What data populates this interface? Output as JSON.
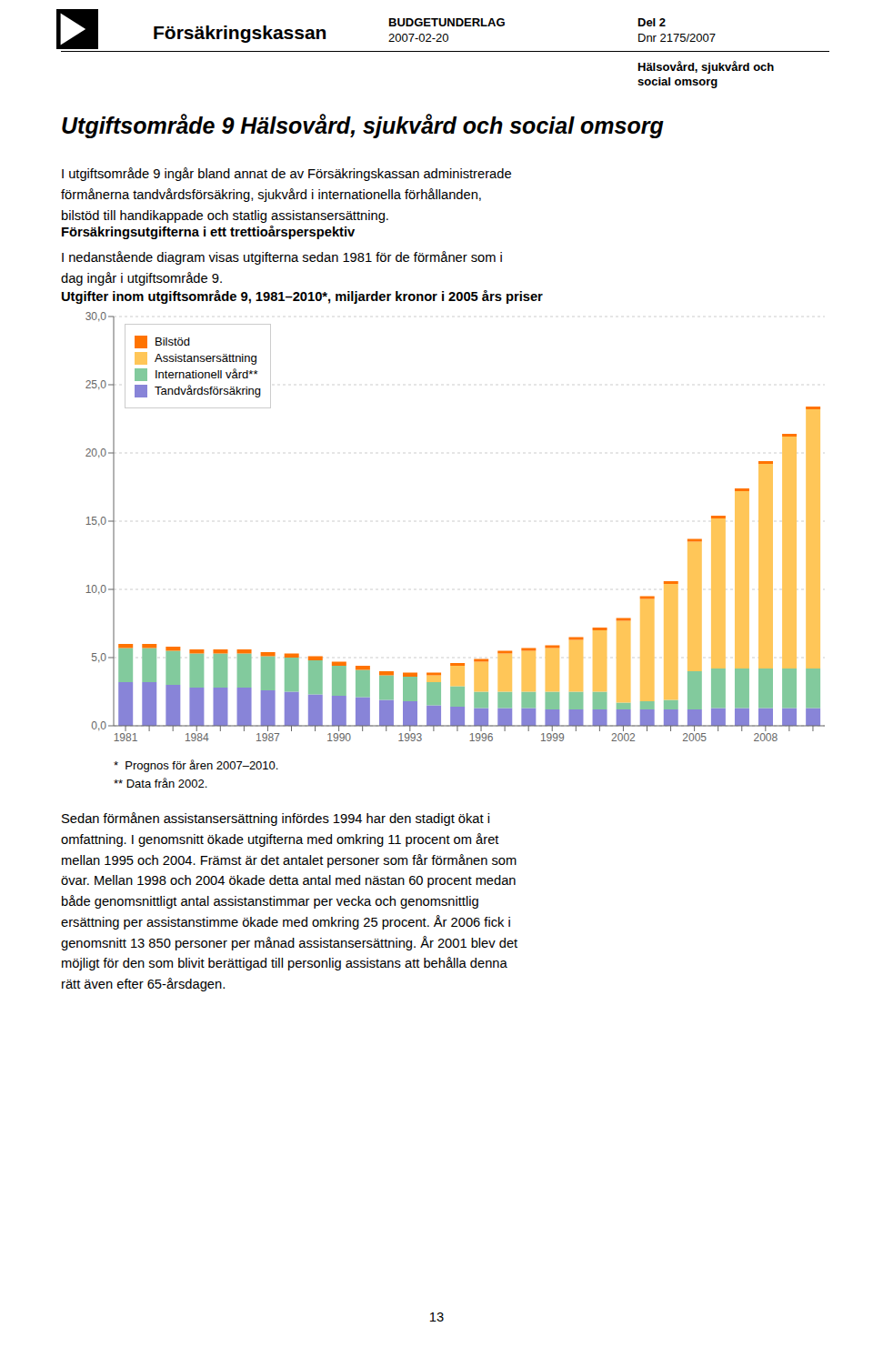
{
  "chart_data": {
    "type": "bar",
    "title": "Utgifter inom utgiftsområde 9, 1981–2010*, miljarder kronor i 2005 års priser",
    "stacked": true,
    "grid": true,
    "legend": "upper left",
    "categories": [
      1981,
      null,
      null,
      1984,
      null,
      null,
      1987,
      null,
      null,
      1990,
      null,
      null,
      1993,
      null,
      null,
      1996,
      null,
      null,
      1999,
      null,
      null,
      2002,
      null,
      null,
      2005,
      null,
      null,
      2008,
      null,
      null
    ],
    "series": [
      {
        "name": "Tandvårdsförsäkring",
        "color": "#8884d8",
        "values": [
          3.2,
          3.2,
          3.0,
          2.8,
          2.8,
          2.8,
          2.6,
          2.5,
          2.3,
          2.2,
          2.1,
          1.9,
          1.8,
          1.5,
          1.4,
          1.3,
          1.3,
          1.3,
          1.2,
          1.2,
          1.2,
          1.2,
          1.2,
          1.2,
          1.2,
          1.3,
          1.3,
          1.3,
          1.3,
          1.3
        ]
      },
      {
        "name": "Internationell vård**",
        "color": "#82ca9d",
        "values": [
          2.5,
          2.5,
          2.5,
          2.5,
          2.5,
          2.5,
          2.5,
          2.5,
          2.5,
          2.2,
          2.0,
          1.8,
          1.8,
          1.7,
          1.5,
          1.2,
          1.2,
          1.2,
          1.3,
          1.3,
          1.3,
          0.5,
          0.6,
          0.7,
          2.8,
          2.9,
          2.9,
          2.9,
          2.9,
          2.9
        ]
      },
      {
        "name": "Assistansersättning",
        "color": "#ffc658",
        "values": [
          0.0,
          0.0,
          0.0,
          0.0,
          0.0,
          0.0,
          0.0,
          0.0,
          0.0,
          0.0,
          0.0,
          0.0,
          0.0,
          0.5,
          1.5,
          2.2,
          2.8,
          3.0,
          3.2,
          3.8,
          4.5,
          6.0,
          7.5,
          8.5,
          9.5,
          11.0,
          13.0,
          15.0,
          17.0,
          19.0
        ]
      },
      {
        "name": "Bilstöd",
        "color": "#ff7300",
        "values": [
          0.3,
          0.3,
          0.3,
          0.3,
          0.3,
          0.3,
          0.3,
          0.3,
          0.3,
          0.3,
          0.3,
          0.3,
          0.3,
          0.2,
          0.2,
          0.2,
          0.2,
          0.2,
          0.2,
          0.2,
          0.2,
          0.2,
          0.2,
          0.2,
          0.2,
          0.2,
          0.2,
          0.2,
          0.2,
          0.2
        ]
      }
    ],
    "ylim": [
      0,
      30
    ],
    "yticks": [
      {
        "value": 0,
        "label": "0,0"
      },
      {
        "value": 5,
        "label": "5,0"
      },
      {
        "value": 10,
        "label": "10,0"
      },
      {
        "value": 15,
        "label": "15,0"
      },
      {
        "value": 20,
        "label": "20,0"
      },
      {
        "value": 25,
        "label": "25,0"
      },
      {
        "value": 30,
        "label": "30,0"
      }
    ],
    "annotations": [
      "Försäkringskassan",
      "BUDGETUNDERLAG",
      "2007-02-20",
      "Del 2",
      "Dnr 2175/2007",
      "Hälsovård, sjukvård och\nsocial omsorg",
      "Utgiftsområde 9 Hälsovård, sjukvård och social omsorg",
      "I utgiftsområde 9 ingår bland annat de av Försäkringskassan administrerade\nförmånerna tandvårdsförsäkring, sjukvård i internationella förhållanden,\nbilstöd till handikappade och statlig assistansersättning.",
      "Försäkringsutgifterna i ett trettioårsperspektiv",
      "I nedanstående diagram visas utgifterna sedan 1981 för de förmåner som i\ndag ingår i utgiftsområde 9.",
      "*  Prognos för åren 2007–2010.",
      "** Data från 2002.",
      "Sedan förmånen assistansersättning infördes 1994 har den stadigt ökat i\nomfattning. I genomsnitt ökade utgifterna med omkring 11 procent om året\nmellan 1995 och 2004. Främst är det antalet personer som får förmånen som\növar. Mellan 1998 och 2004 ökade detta antal med nästan 60 procent medan\nbåde genomsnittligt antal assistanstimmar per vecka och genomsnittlig\nersättning per assistanstimme ökade med omkring 25 procent. År 2006 fick i\ngenomsnitt 13 850 personer per månad assistansersättning. År 2001 blev det\nmöjligt för den som blivit berättigad till personlig assistans att behålla denna\nrätt även efter 65-årsdagen.",
      "13"
    ]
  }
}
